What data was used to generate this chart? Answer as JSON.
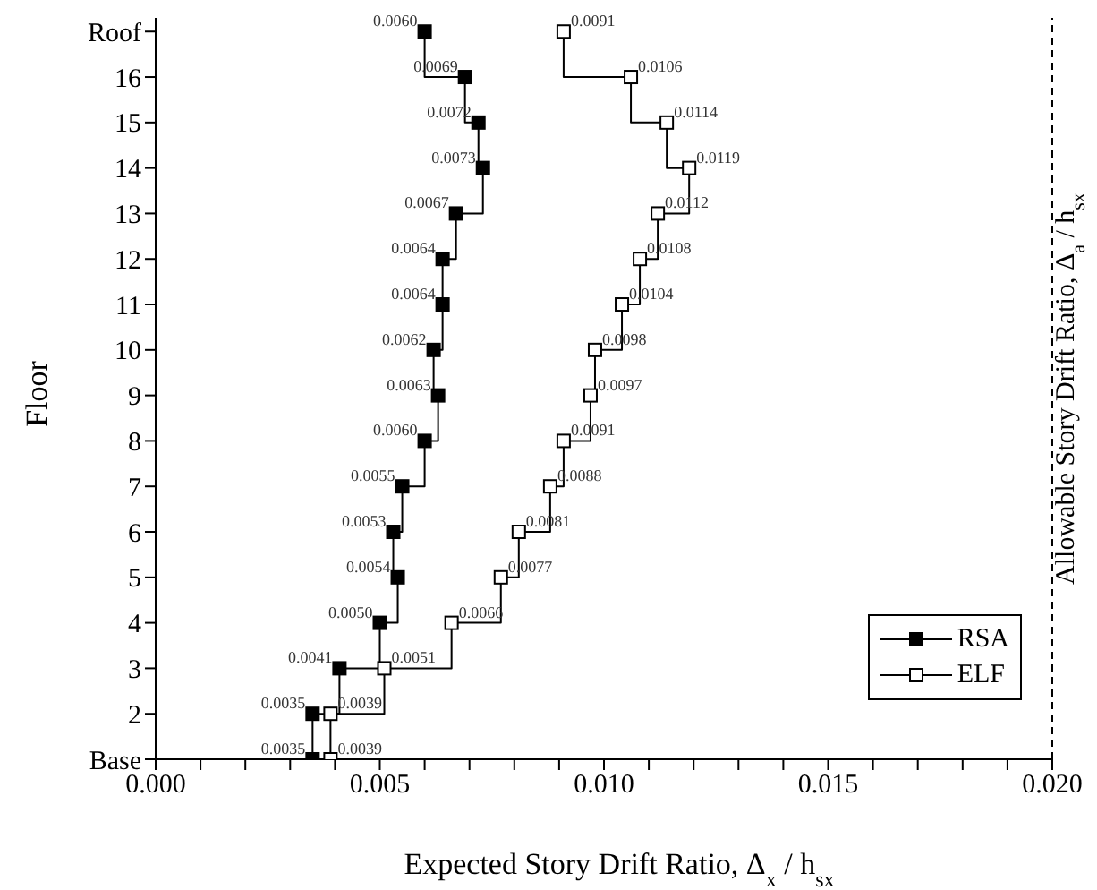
{
  "chart_data": {
    "type": "step",
    "orientation": "horizontal",
    "xlabel": "Expected Story Drift Ratio, Δ$_{x}$ / h$_{sx}$",
    "ylabel": "Floor",
    "categories": [
      "Roof",
      "16",
      "15",
      "14",
      "13",
      "12",
      "11",
      "10",
      "9",
      "8",
      "7",
      "6",
      "5",
      "4",
      "3",
      "2",
      "Base"
    ],
    "series": [
      {
        "name": "RSA",
        "color": "#000000",
        "marker": "square",
        "values": [
          0.006,
          0.0069,
          0.0072,
          0.0073,
          0.0067,
          0.0064,
          0.0064,
          0.0062,
          0.0063,
          0.006,
          0.0055,
          0.0053,
          0.0054,
          0.005,
          0.0041,
          0.0035,
          0.0035
        ],
        "value_labels": [
          "0.0060",
          "0.0069",
          "0.0072",
          "0.0073",
          "0.0067",
          "0.0064",
          "0.0064",
          "0.0062",
          "0.0063",
          "0.0060",
          "0.0055",
          "0.0053",
          "0.0054",
          "0.0050",
          "0.0041",
          "0.0035",
          "0.0035"
        ]
      },
      {
        "name": "ELF",
        "color": "#000000",
        "marker": "square-open",
        "values": [
          0.0091,
          0.0106,
          0.0114,
          0.0119,
          0.0112,
          0.0108,
          0.0104,
          0.0098,
          0.0097,
          0.0091,
          0.0088,
          0.0081,
          0.0077,
          0.0066,
          0.0051,
          0.0039,
          0.0039
        ],
        "value_labels": [
          "0.0091",
          "0.0106",
          "0.0114",
          "0.0119",
          "0.0112",
          "0.0108",
          "0.0104",
          "0.0098",
          "0.0097",
          "0.0091",
          "0.0088",
          "0.0081",
          "0.0077",
          "0.0066",
          "0.0051",
          "0.0039",
          "0.0039"
        ]
      }
    ],
    "xlim": [
      0,
      0.02
    ],
    "xticks": [
      {
        "value": 0,
        "label": "0.000"
      },
      {
        "value": 0.001,
        "label": null
      },
      {
        "value": 0.002,
        "label": null
      },
      {
        "value": 0.003,
        "label": null
      },
      {
        "value": 0.004,
        "label": null
      },
      {
        "value": 0.005,
        "label": "0.005"
      },
      {
        "value": 0.006,
        "label": null
      },
      {
        "value": 0.007,
        "label": null
      },
      {
        "value": 0.008,
        "label": null
      },
      {
        "value": 0.009,
        "label": null
      },
      {
        "value": 0.01,
        "label": "0.010"
      },
      {
        "value": 0.011,
        "label": null
      },
      {
        "value": 0.012,
        "label": null
      },
      {
        "value": 0.013,
        "label": null
      },
      {
        "value": 0.014,
        "label": null
      },
      {
        "value": 0.015,
        "label": "0.015"
      },
      {
        "value": 0.016,
        "label": null
      },
      {
        "value": 0.017,
        "label": null
      },
      {
        "value": 0.018,
        "label": null
      },
      {
        "value": 0.019,
        "label": null
      },
      {
        "value": 0.02,
        "label": "0.020"
      }
    ],
    "ref_lines": [
      {
        "axis": "x",
        "value": 0.02,
        "label": "Allowable Story Drift Ratio, Δ$_{a}$ / h$_{sx}$",
        "line_style": "dashed",
        "color": "#000000"
      }
    ],
    "legend": "bottom right"
  }
}
